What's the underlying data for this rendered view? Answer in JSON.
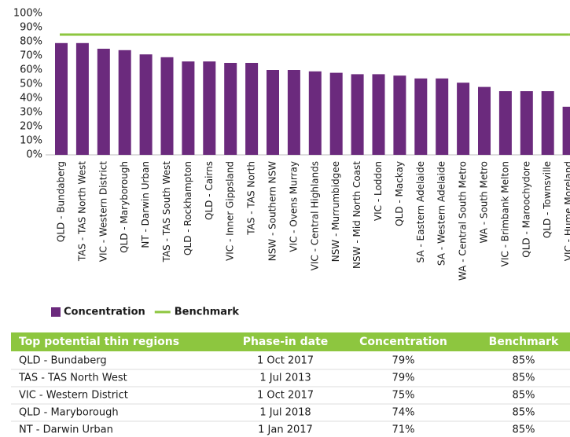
{
  "chart_data": {
    "type": "bar",
    "categories": [
      "QLD - Bundaberg",
      "TAS - TAS North West",
      "VIC - Western District",
      "QLD - Maryborough",
      "NT - Darwin Urban",
      "TAS - TAS South West",
      "QLD - Rockhampton",
      "QLD - Cairns",
      "VIC - Inner Gippsland",
      "TAS - TAS North",
      "NSW - Southern NSW",
      "VIC - Ovens Murray",
      "VIC - Central Highlands",
      "NSW - Murrumbidgee",
      "NSW - Mid North Coast",
      "VIC - Loddon",
      "QLD - Mackay",
      "SA - Eastern Adelaide",
      "SA - Western Adelaide",
      "WA - Central South Metro",
      "WA - South Metro",
      "VIC - Brimbank Melton",
      "QLD - Maroochydore",
      "QLD - Townsville",
      "VIC - Hume Moreland"
    ],
    "series": [
      {
        "name": "Concentration",
        "color": "#6b2a7d",
        "values": [
          79,
          79,
          75,
          74,
          71,
          69,
          66,
          66,
          65,
          65,
          60,
          60,
          59,
          58,
          57,
          57,
          56,
          54,
          54,
          51,
          48,
          45,
          45,
          45,
          34
        ]
      },
      {
        "name": "Benchmark",
        "color": "#8dc63f",
        "type": "line",
        "values": [
          85,
          85,
          85,
          85,
          85,
          85,
          85,
          85,
          85,
          85,
          85,
          85,
          85,
          85,
          85,
          85,
          85,
          85,
          85,
          85,
          85,
          85,
          85,
          85,
          85
        ]
      }
    ],
    "ylim": [
      0,
      100
    ],
    "yticks": [
      {
        "value": 0,
        "label": "0%"
      },
      {
        "value": 10,
        "label": "10%"
      },
      {
        "value": 20,
        "label": "20%"
      },
      {
        "value": 30,
        "label": "30%"
      },
      {
        "value": 40,
        "label": "40%"
      },
      {
        "value": 50,
        "label": "50%"
      },
      {
        "value": 60,
        "label": "60%"
      },
      {
        "value": 70,
        "label": "70%"
      },
      {
        "value": 80,
        "label": "80%"
      },
      {
        "value": 90,
        "label": "90%"
      },
      {
        "value": 100,
        "label": "100%"
      }
    ],
    "grid": false,
    "legend": "bottom"
  },
  "table": {
    "header": [
      "Top potential thin regions",
      "Phase-in date",
      "Concentration",
      "Benchmark"
    ],
    "rows": [
      [
        "QLD - Bundaberg",
        "1 Oct 2017",
        "79%",
        "85%"
      ],
      [
        "TAS - TAS North West",
        "1 Jul 2013",
        "79%",
        "85%"
      ],
      [
        "VIC - Western District",
        "1 Oct 2017",
        "75%",
        "85%"
      ],
      [
        "QLD - Maryborough",
        "1 Jul 2018",
        "74%",
        "85%"
      ],
      [
        "NT - Darwin Urban",
        "1 Jan 2017",
        "71%",
        "85%"
      ]
    ]
  }
}
